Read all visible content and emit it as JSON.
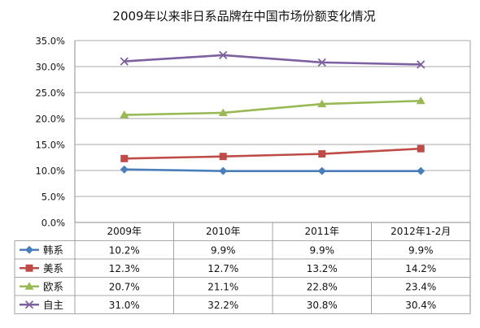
{
  "chart_data": {
    "type": "line",
    "title": "2009年以来非日系品牌在中国市场份额变化情况",
    "categories": [
      "2009年",
      "2010年",
      "2011年",
      "2012年1-2月"
    ],
    "ylim": [
      0,
      35
    ],
    "yticks": [
      "0.0%",
      "5.0%",
      "10.0%",
      "15.0%",
      "20.0%",
      "25.0%",
      "30.0%",
      "35.0%"
    ],
    "grid": true,
    "legend": "table-below",
    "series": [
      {
        "name": "韩系",
        "values": [
          10.2,
          9.9,
          9.9,
          9.9
        ],
        "labels": [
          "10.2%",
          "9.9%",
          "9.9%",
          "9.9%"
        ],
        "color": "#4a7ebb",
        "marker": "diamond"
      },
      {
        "name": "美系",
        "values": [
          12.3,
          12.7,
          13.2,
          14.2
        ],
        "labels": [
          "12.3%",
          "12.7%",
          "13.2%",
          "14.2%"
        ],
        "color": "#be4b48",
        "marker": "square"
      },
      {
        "name": "欧系",
        "values": [
          20.7,
          21.1,
          22.8,
          23.4
        ],
        "labels": [
          "20.7%",
          "21.1%",
          "22.8%",
          "23.4%"
        ],
        "color": "#98b954",
        "marker": "triangle"
      },
      {
        "name": "自主",
        "values": [
          31.0,
          32.2,
          30.8,
          30.4
        ],
        "labels": [
          "31.0%",
          "32.2%",
          "30.8%",
          "30.4%"
        ],
        "color": "#7d60a0",
        "marker": "x"
      }
    ]
  }
}
